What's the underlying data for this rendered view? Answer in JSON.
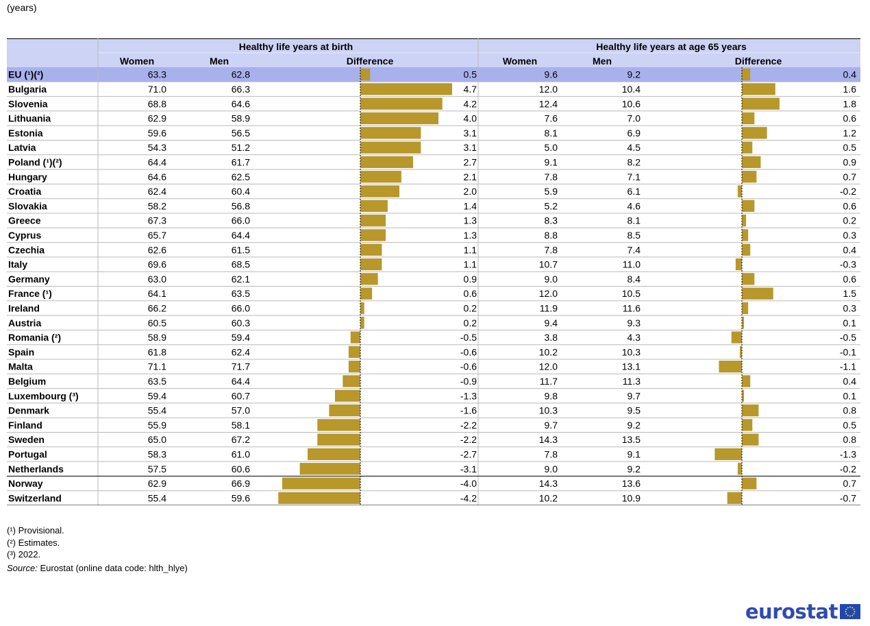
{
  "unit_label": "(years)",
  "colors": {
    "header_bg": "#cdd3f5",
    "eu_row_bg": "#a9b1ec",
    "bar": "#b8972b",
    "grid": "#b9b9b9",
    "logo_blue": "#2f4bb0",
    "flag_blue": "#1f48b3",
    "flag_stars": "#ffdd00"
  },
  "table": {
    "group_headers": [
      "Healthy life years at birth",
      "Healthy life years at age 65 years"
    ],
    "column_headers": [
      "Women",
      "Men",
      "Difference",
      "Women",
      "Men",
      "Difference"
    ]
  },
  "chart_data": {
    "type": "table",
    "columns": [
      "Birth women",
      "Birth men",
      "Birth difference",
      "Age 65 women",
      "Age 65 men",
      "Age 65 difference"
    ],
    "rows": [
      {
        "label": "EU (¹)(²)",
        "birth": [
          "63.3",
          "62.8",
          "0.5"
        ],
        "age65": [
          "9.6",
          "9.2",
          "0.4"
        ]
      },
      {
        "label": "Bulgaria",
        "birth": [
          "71.0",
          "66.3",
          "4.7"
        ],
        "age65": [
          "12.0",
          "10.4",
          "1.6"
        ]
      },
      {
        "label": "Slovenia",
        "birth": [
          "68.8",
          "64.6",
          "4.2"
        ],
        "age65": [
          "12.4",
          "10.6",
          "1.8"
        ]
      },
      {
        "label": "Lithuania",
        "birth": [
          "62.9",
          "58.9",
          "4.0"
        ],
        "age65": [
          "7.6",
          "7.0",
          "0.6"
        ]
      },
      {
        "label": "Estonia",
        "birth": [
          "59.6",
          "56.5",
          "3.1"
        ],
        "age65": [
          "8.1",
          "6.9",
          "1.2"
        ]
      },
      {
        "label": "Latvia",
        "birth": [
          "54.3",
          "51.2",
          "3.1"
        ],
        "age65": [
          "5.0",
          "4.5",
          "0.5"
        ]
      },
      {
        "label": "Poland (¹)(²)",
        "birth": [
          "64.4",
          "61.7",
          "2.7"
        ],
        "age65": [
          "9.1",
          "8.2",
          "0.9"
        ]
      },
      {
        "label": "Hungary",
        "birth": [
          "64.6",
          "62.5",
          "2.1"
        ],
        "age65": [
          "7.8",
          "7.1",
          "0.7"
        ]
      },
      {
        "label": "Croatia",
        "birth": [
          "62.4",
          "60.4",
          "2.0"
        ],
        "age65": [
          "5.9",
          "6.1",
          "-0.2"
        ]
      },
      {
        "label": "Slovakia",
        "birth": [
          "58.2",
          "56.8",
          "1.4"
        ],
        "age65": [
          "5.2",
          "4.6",
          "0.6"
        ]
      },
      {
        "label": "Greece",
        "birth": [
          "67.3",
          "66.0",
          "1.3"
        ],
        "age65": [
          "8.3",
          "8.1",
          "0.2"
        ]
      },
      {
        "label": "Cyprus",
        "birth": [
          "65.7",
          "64.4",
          "1.3"
        ],
        "age65": [
          "8.8",
          "8.5",
          "0.3"
        ]
      },
      {
        "label": "Czechia",
        "birth": [
          "62.6",
          "61.5",
          "1.1"
        ],
        "age65": [
          "7.8",
          "7.4",
          "0.4"
        ]
      },
      {
        "label": "Italy",
        "birth": [
          "69.6",
          "68.5",
          "1.1"
        ],
        "age65": [
          "10.7",
          "11.0",
          "-0.3"
        ]
      },
      {
        "label": "Germany",
        "birth": [
          "63.0",
          "62.1",
          "0.9"
        ],
        "age65": [
          "9.0",
          "8.4",
          "0.6"
        ]
      },
      {
        "label": "France (¹)",
        "birth": [
          "64.1",
          "63.5",
          "0.6"
        ],
        "age65": [
          "12.0",
          "10.5",
          "1.5"
        ]
      },
      {
        "label": "Ireland",
        "birth": [
          "66.2",
          "66.0",
          "0.2"
        ],
        "age65": [
          "11.9",
          "11.6",
          "0.3"
        ]
      },
      {
        "label": "Austria",
        "birth": [
          "60.5",
          "60.3",
          "0.2"
        ],
        "age65": [
          "9.4",
          "9.3",
          "0.1"
        ]
      },
      {
        "label": "Romania (²)",
        "birth": [
          "58.9",
          "59.4",
          "-0.5"
        ],
        "age65": [
          "3.8",
          "4.3",
          "-0.5"
        ]
      },
      {
        "label": "Spain",
        "birth": [
          "61.8",
          "62.4",
          "-0.6"
        ],
        "age65": [
          "10.2",
          "10.3",
          "-0.1"
        ]
      },
      {
        "label": "Malta",
        "birth": [
          "71.1",
          "71.7",
          "-0.6"
        ],
        "age65": [
          "12.0",
          "13.1",
          "-1.1"
        ]
      },
      {
        "label": "Belgium",
        "birth": [
          "63.5",
          "64.4",
          "-0.9"
        ],
        "age65": [
          "11.7",
          "11.3",
          "0.4"
        ]
      },
      {
        "label": "Luxembourg (³)",
        "birth": [
          "59.4",
          "60.7",
          "-1.3"
        ],
        "age65": [
          "9.8",
          "9.7",
          "0.1"
        ]
      },
      {
        "label": "Denmark",
        "birth": [
          "55.4",
          "57.0",
          "-1.6"
        ],
        "age65": [
          "10.3",
          "9.5",
          "0.8"
        ]
      },
      {
        "label": "Finland",
        "birth": [
          "55.9",
          "58.1",
          "-2.2"
        ],
        "age65": [
          "9.7",
          "9.2",
          "0.5"
        ]
      },
      {
        "label": "Sweden",
        "birth": [
          "65.0",
          "67.2",
          "-2.2"
        ],
        "age65": [
          "14.3",
          "13.5",
          "0.8"
        ]
      },
      {
        "label": "Portugal",
        "birth": [
          "58.3",
          "61.0",
          "-2.7"
        ],
        "age65": [
          "7.8",
          "9.1",
          "-1.3"
        ]
      },
      {
        "label": "Netherlands",
        "birth": [
          "57.5",
          "60.6",
          "-3.1"
        ],
        "age65": [
          "9.0",
          "9.2",
          "-0.2"
        ]
      },
      {
        "label": "Norway",
        "birth": [
          "62.9",
          "66.9",
          "-4.0"
        ],
        "age65": [
          "14.3",
          "13.6",
          "0.7"
        ]
      },
      {
        "label": "Switzerland",
        "birth": [
          "55.4",
          "59.6",
          "-4.2"
        ],
        "age65": [
          "10.2",
          "10.9",
          "-0.7"
        ]
      }
    ]
  },
  "footnotes": [
    "(¹) Provisional.",
    "(²) Estimates.",
    "(³) 2022."
  ],
  "source": {
    "label": "Source:",
    "text": "Eurostat (online data code: hlth_hlye)"
  },
  "logo": {
    "text": "eurostat"
  }
}
